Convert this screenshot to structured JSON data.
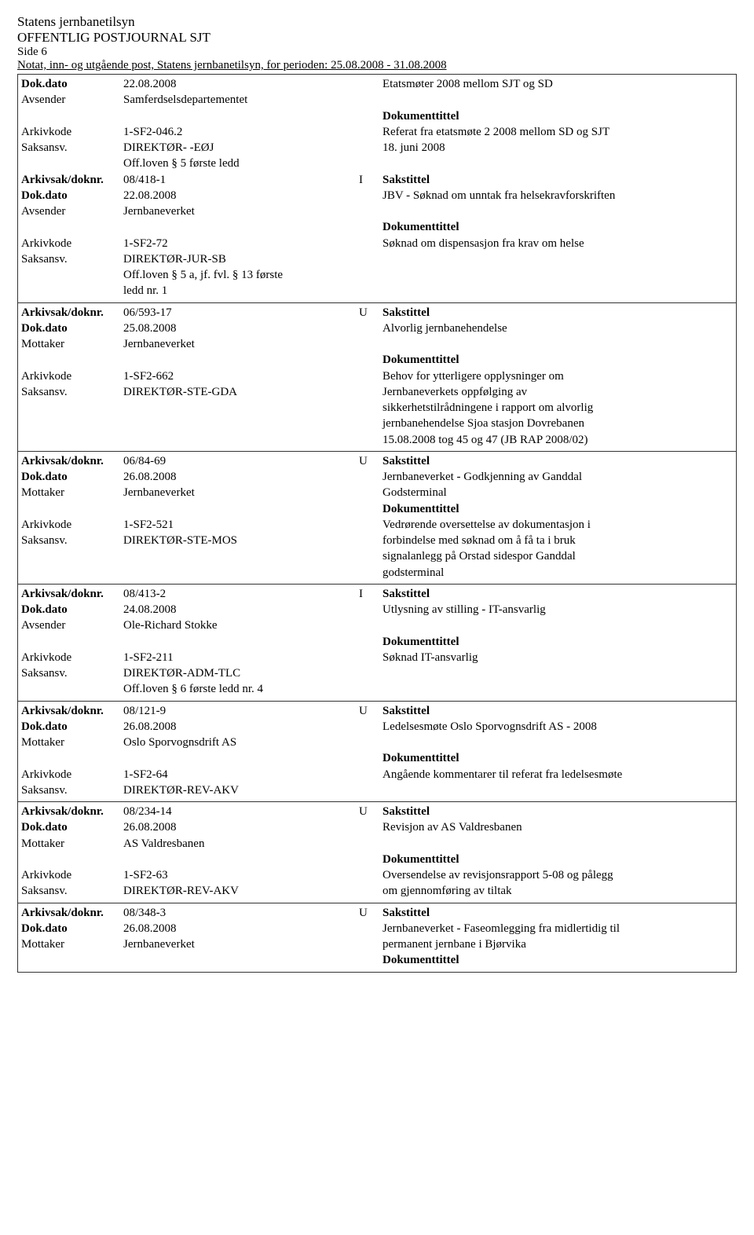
{
  "header": {
    "org": "Statens jernbanetilsyn",
    "journal": "OFFENTLIG POSTJOURNAL SJT",
    "side": "Side 6",
    "period": "Notat, inn- og utgående post, Statens jernbanetilsyn, for perioden: 25.08.2008 - 31.08.2008"
  },
  "labels": {
    "dokdato": "Dok.dato",
    "avsender": "Avsender",
    "mottaker": "Mottaker",
    "arkivkode": "Arkivkode",
    "saksansv": "Saksansv.",
    "arkivsak": "Arkivsak/doknr.",
    "sakstittel": "Sakstittel",
    "dokumenttittel": "Dokumenttittel"
  },
  "records": [
    {
      "top_dokdato": "22.08.2008",
      "top_right": "Etatsmøter 2008 mellom SJT og SD",
      "party_label": "Avsender",
      "party": "Samferdselsdepartementet",
      "arkivkode": "1-SF2-046.2",
      "arkivkode_right": "Referat fra etatsmøte 2 2008 mellom SD og SJT",
      "saksansv": "DIREKTØR- -EØJ",
      "saksansv_right": "18. juni 2008",
      "extra": [
        "Off.loven § 5 første ledd"
      ],
      "arkivsak": "08/418-1",
      "io": "I",
      "dokdato2": "22.08.2008",
      "dokdato2_right": "JBV - Søknad om unntak fra helsekravforskriften",
      "party2_label": "Avsender",
      "party2": "Jernbaneverket",
      "arkivkode2": "1-SF2-72",
      "arkivkode2_right": "Søknad om dispensasjon fra krav om helse",
      "saksansv2": "DIREKTØR-JUR-SB",
      "extra2": [
        "Off.loven § 5 a, jf. fvl. § 13 første",
        "ledd nr. 1"
      ]
    },
    {
      "arkivsak": "06/593-17",
      "io": "U",
      "dokdato": "25.08.2008",
      "dokdato_right": "Alvorlig jernbanehendelse",
      "party_label": "Mottaker",
      "party": "Jernbaneverket",
      "arkivkode": "1-SF2-662",
      "arkivkode_right": "Behov for ytterligere opplysninger om",
      "saksansv": "DIREKTØR-STE-GDA",
      "saksansv_right": "Jernbaneverkets oppfølging av",
      "right_extra": [
        "sikkerhetstilrådningene i rapport om alvorlig",
        "jernbanehendelse Sjoa stasjon Dovrebanen",
        "15.08.2008 tog 45 og 47 (JB RAP 2008/02)"
      ]
    },
    {
      "arkivsak": "06/84-69",
      "io": "U",
      "dokdato": "26.08.2008",
      "dokdato_right": "Jernbaneverket - Godkjenning av Ganddal",
      "party_label": "Mottaker",
      "party": "Jernbaneverket",
      "party_right": "Godsterminal",
      "arkivkode": "1-SF2-521",
      "arkivkode_right": "Vedrørende oversettelse av dokumentasjon i",
      "saksansv": "DIREKTØR-STE-MOS",
      "saksansv_right": "forbindelse med søknad om å få ta i bruk",
      "right_extra": [
        "signalanlegg på Orstad sidespor Ganddal",
        "godsterminal"
      ]
    },
    {
      "arkivsak": "08/413-2",
      "io": "I",
      "dokdato": "24.08.2008",
      "dokdato_right": "Utlysning av stilling - IT-ansvarlig",
      "party_label": "Avsender",
      "party": "Ole-Richard Stokke",
      "arkivkode": "1-SF2-211",
      "arkivkode_right": "Søknad IT-ansvarlig",
      "saksansv": "DIREKTØR-ADM-TLC",
      "extra": [
        "Off.loven § 6 første ledd nr. 4"
      ]
    },
    {
      "arkivsak": "08/121-9",
      "io": "U",
      "dokdato": "26.08.2008",
      "dokdato_right": "Ledelsesmøte Oslo Sporvognsdrift AS - 2008",
      "party_label": "Mottaker",
      "party": "Oslo Sporvognsdrift AS",
      "arkivkode": "1-SF2-64",
      "arkivkode_right": "Angående kommentarer til referat fra ledelsesmøte",
      "saksansv": "DIREKTØR-REV-AKV"
    },
    {
      "arkivsak": "08/234-14",
      "io": "U",
      "dokdato": "26.08.2008",
      "dokdato_right": "Revisjon av AS Valdresbanen",
      "party_label": "Mottaker",
      "party": "AS Valdresbanen",
      "arkivkode": "1-SF2-63",
      "arkivkode_right": "Oversendelse av revisjonsrapport 5-08 og pålegg",
      "saksansv": "DIREKTØR-REV-AKV",
      "saksansv_right": "om gjennomføring av tiltak"
    },
    {
      "arkivsak": "08/348-3",
      "io": "U",
      "dokdato": "26.08.2008",
      "dokdato_right": "Jernbaneverket - Faseomlegging fra midlertidig til",
      "party_label": "Mottaker",
      "party": "Jernbaneverket",
      "party_right": "permanent jernbane i Bjørvika",
      "dokumenttittel_only": true
    }
  ]
}
